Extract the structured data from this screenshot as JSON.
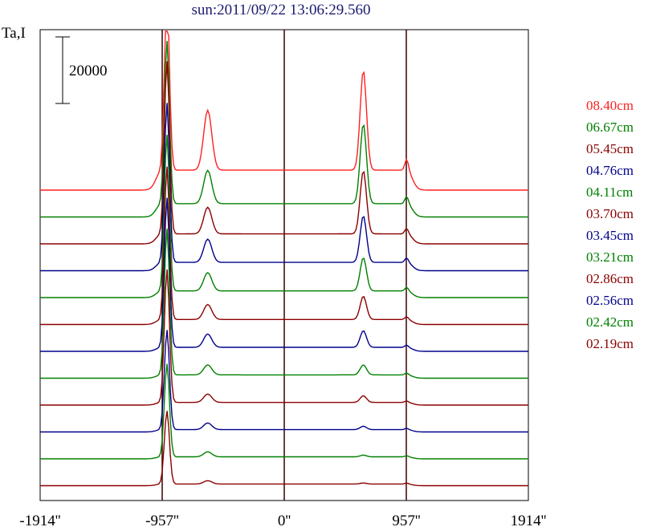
{
  "chart_data": {
    "type": "line",
    "title": "sun:2011/09/22 13:06:29.560",
    "ylabel": "Ta,I",
    "scale_bar_label": "20000",
    "x_ticks": [
      "-1914''",
      "-957''",
      "0''",
      "957''",
      "1914''"
    ],
    "x_tick_values": [
      -1914,
      -957,
      0,
      957,
      1914
    ],
    "xlim": [
      -1914,
      1914
    ],
    "reference_lines_x": [
      -957,
      0,
      957
    ],
    "grid": false,
    "legend_position": "right",
    "series": [
      {
        "name": "08.40cm",
        "color": "#ff2020",
        "baseline": 1,
        "peak_w": 52000,
        "shoulder_w": 18000,
        "peak_e": 30000,
        "limb": 6000
      },
      {
        "name": "06.67cm",
        "color": "#008000",
        "baseline": 1,
        "peak_w": 49000,
        "shoulder_w": 10000,
        "peak_e": 24000,
        "limb": 4000
      },
      {
        "name": "05.45cm",
        "color": "#8b0000",
        "baseline": 1,
        "peak_w": 52000,
        "shoulder_w": 8000,
        "peak_e": 19000,
        "limb": 3000
      },
      {
        "name": "04.76cm",
        "color": "#00008b",
        "baseline": 1,
        "peak_w": 48000,
        "shoulder_w": 7000,
        "peak_e": 14000,
        "limb": 2500
      },
      {
        "name": "04.11cm",
        "color": "#008000",
        "baseline": 1,
        "peak_w": 47000,
        "shoulder_w": 5500,
        "peak_e": 10000,
        "limb": 2000
      },
      {
        "name": "03.70cm",
        "color": "#8b0000",
        "baseline": 1,
        "peak_w": 46000,
        "shoulder_w": 4500,
        "peak_e": 7000,
        "limb": 1500
      },
      {
        "name": "03.45cm",
        "color": "#00008b",
        "baseline": 1,
        "peak_w": 45000,
        "shoulder_w": 4000,
        "peak_e": 5000,
        "limb": 1200
      },
      {
        "name": "03.21cm",
        "color": "#008000",
        "baseline": 1,
        "peak_w": 44000,
        "shoulder_w": 3000,
        "peak_e": 3000,
        "limb": 1000
      },
      {
        "name": "02.86cm",
        "color": "#8b0000",
        "baseline": 1,
        "peak_w": 40000,
        "shoulder_w": 2500,
        "peak_e": 2000,
        "limb": 800
      },
      {
        "name": "02.56cm",
        "color": "#00008b",
        "baseline": 1,
        "peak_w": 30000,
        "shoulder_w": 2000,
        "peak_e": 1000,
        "limb": 700
      },
      {
        "name": "02.42cm",
        "color": "#008000",
        "baseline": 1,
        "peak_w": 28000,
        "shoulder_w": 1500,
        "peak_e": 500,
        "limb": 600
      },
      {
        "name": "02.19cm",
        "color": "#8b0000",
        "baseline": 1,
        "peak_w": 22000,
        "shoulder_w": 1000,
        "peak_e": 300,
        "limb": 500
      }
    ]
  }
}
